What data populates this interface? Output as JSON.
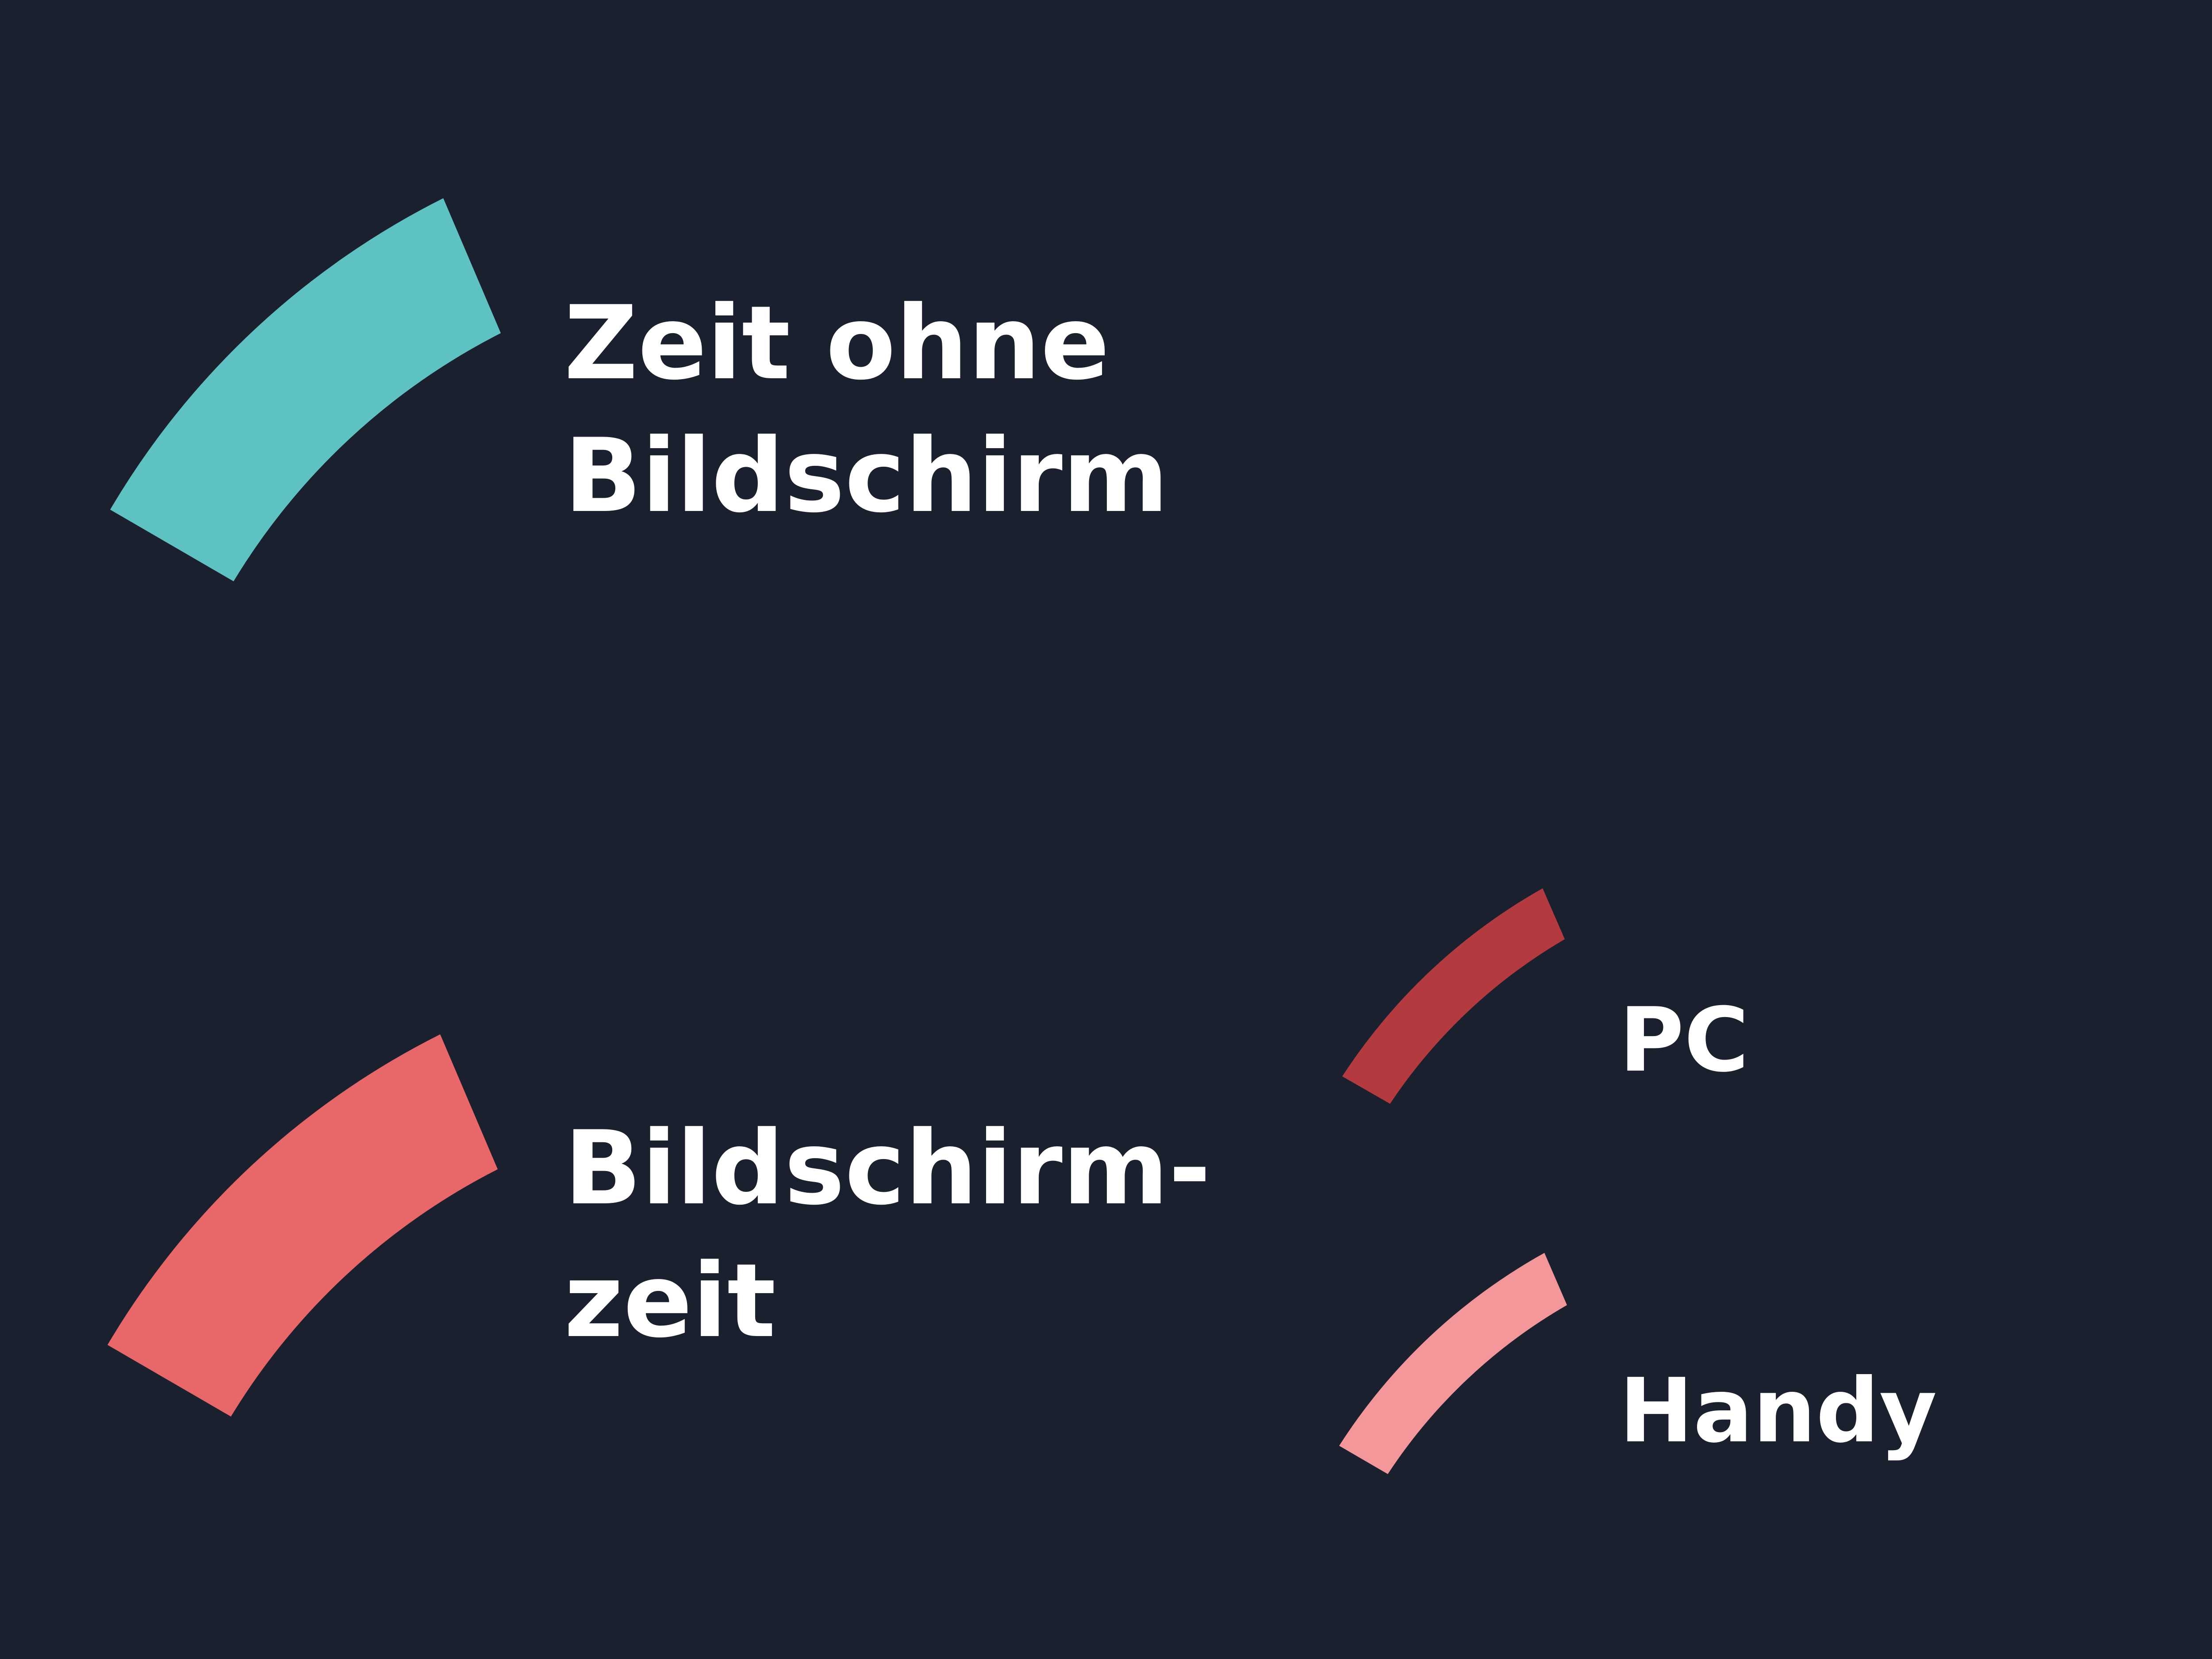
{
  "chart_data": {
    "type": "legend",
    "items": [
      {
        "key": "offscreen",
        "lines": [
          "Zeit ohne",
          "Bildschirm"
        ],
        "color": "#5fc2c2"
      },
      {
        "key": "screen",
        "lines": [
          "Bildschirm-",
          "zeit"
        ],
        "color": "#e8686a"
      },
      {
        "key": "pc",
        "lines": [
          "PC"
        ],
        "color": "#b33b3f"
      },
      {
        "key": "handy",
        "lines": [
          "Handy"
        ],
        "color": "#f3979b"
      }
    ]
  }
}
